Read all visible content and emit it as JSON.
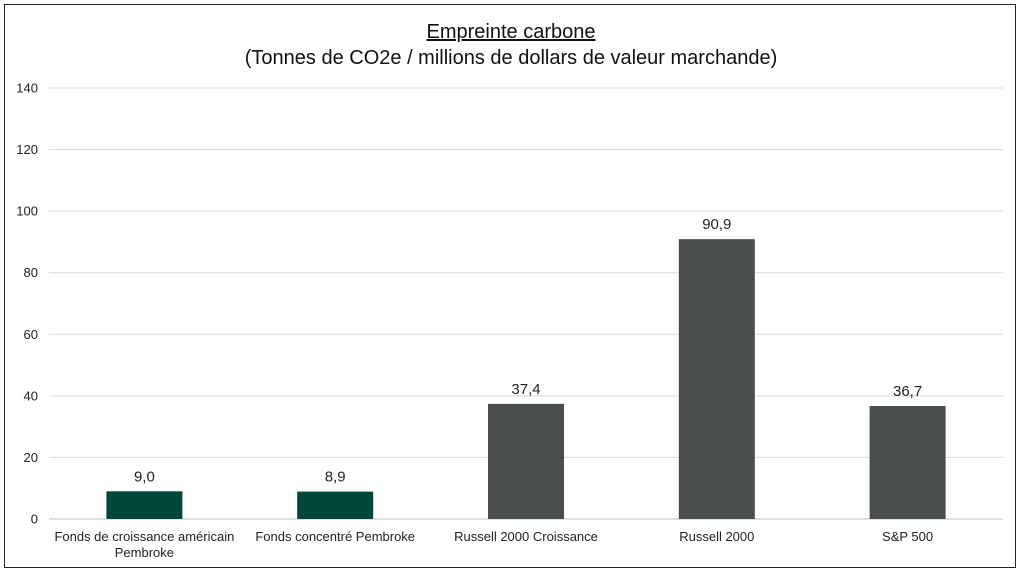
{
  "chart_data": {
    "type": "bar",
    "title": "Empreinte carbone",
    "subtitle": "(Tonnes de CO2e / millions de dollars de valeur marchande)",
    "xlabel": "",
    "ylabel": "",
    "ylim": [
      0,
      140
    ],
    "yticks": [
      0,
      20,
      40,
      60,
      80,
      100,
      120,
      140
    ],
    "grid": true,
    "legend": "none",
    "categories": [
      [
        "Fonds de croissance américain",
        "Pembroke"
      ],
      [
        "Fonds concentré Pembroke"
      ],
      [
        "Russell 2000 Croissance"
      ],
      [
        "Russell 2000"
      ],
      [
        "S&P 500"
      ]
    ],
    "values": [
      9.0,
      8.9,
      37.4,
      90.9,
      36.7
    ],
    "value_labels": [
      "9,0",
      "8,9",
      "37,4",
      "90,9",
      "36,7"
    ],
    "colors": [
      "#00473a",
      "#00473a",
      "#4a4d4d",
      "#4a4d4d",
      "#4a4d4d"
    ],
    "grid_color": "#d9d9d9"
  }
}
